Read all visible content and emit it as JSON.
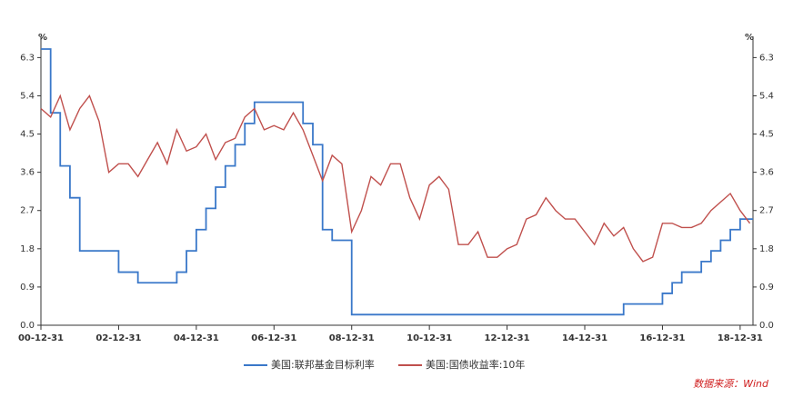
{
  "chart_data": {
    "type": "line",
    "y_unit": "%",
    "y2_unit": "%",
    "x": [
      "00-12-31",
      "01-03-31",
      "01-06-30",
      "01-09-30",
      "01-12-31",
      "02-03-31",
      "02-06-30",
      "02-09-30",
      "02-12-31",
      "03-03-31",
      "03-06-30",
      "03-09-30",
      "03-12-31",
      "04-03-31",
      "04-06-30",
      "04-09-30",
      "04-12-31",
      "05-03-31",
      "05-06-30",
      "05-09-30",
      "05-12-31",
      "06-03-31",
      "06-06-30",
      "06-09-30",
      "06-12-31",
      "07-03-31",
      "07-06-30",
      "07-09-30",
      "07-12-31",
      "08-03-31",
      "08-06-30",
      "08-09-30",
      "08-12-31",
      "09-03-31",
      "09-06-30",
      "09-09-30",
      "09-12-31",
      "10-03-31",
      "10-06-30",
      "10-09-30",
      "10-12-31",
      "11-03-31",
      "11-06-30",
      "11-09-30",
      "11-12-31",
      "12-03-31",
      "12-06-30",
      "12-09-30",
      "12-12-31",
      "13-03-31",
      "13-06-30",
      "13-09-30",
      "13-12-31",
      "14-03-31",
      "14-06-30",
      "14-09-30",
      "14-12-31",
      "15-03-31",
      "15-06-30",
      "15-09-30",
      "15-12-31",
      "16-03-31",
      "16-06-30",
      "16-09-30",
      "16-12-31",
      "17-03-31",
      "17-06-30",
      "17-09-30",
      "17-12-31",
      "18-03-31",
      "18-06-30",
      "18-09-30",
      "18-12-31",
      "19-03-31"
    ],
    "series": [
      {
        "name": "美国:联邦基金目标利率",
        "color": "#3a78c9",
        "step": true,
        "values": [
          6.5,
          5.0,
          3.75,
          3.0,
          1.75,
          1.75,
          1.75,
          1.75,
          1.25,
          1.25,
          1.0,
          1.0,
          1.0,
          1.0,
          1.25,
          1.75,
          2.25,
          2.75,
          3.25,
          3.75,
          4.25,
          4.75,
          5.25,
          5.25,
          5.25,
          5.25,
          5.25,
          4.75,
          4.25,
          2.25,
          2.0,
          2.0,
          0.25,
          0.25,
          0.25,
          0.25,
          0.25,
          0.25,
          0.25,
          0.25,
          0.25,
          0.25,
          0.25,
          0.25,
          0.25,
          0.25,
          0.25,
          0.25,
          0.25,
          0.25,
          0.25,
          0.25,
          0.25,
          0.25,
          0.25,
          0.25,
          0.25,
          0.25,
          0.25,
          0.25,
          0.5,
          0.5,
          0.5,
          0.5,
          0.75,
          1.0,
          1.25,
          1.25,
          1.5,
          1.75,
          2.0,
          2.25,
          2.5,
          2.5
        ]
      },
      {
        "name": "美国:国债收益率:10年",
        "color": "#c0504d",
        "axis": "y2",
        "values": [
          5.1,
          4.9,
          5.4,
          4.6,
          5.1,
          5.4,
          4.8,
          3.6,
          3.8,
          3.8,
          3.5,
          3.9,
          4.3,
          3.8,
          4.6,
          4.1,
          4.2,
          4.5,
          3.9,
          4.3,
          4.4,
          4.9,
          5.1,
          4.6,
          4.7,
          4.6,
          5.0,
          4.6,
          4.0,
          3.4,
          4.0,
          3.8,
          2.2,
          2.7,
          3.5,
          3.3,
          3.8,
          3.8,
          3.0,
          2.5,
          3.3,
          3.5,
          3.2,
          1.9,
          1.9,
          2.2,
          1.6,
          1.6,
          1.8,
          1.9,
          2.5,
          2.6,
          3.0,
          2.7,
          2.5,
          2.5,
          2.2,
          1.9,
          2.4,
          2.1,
          2.3,
          1.8,
          1.5,
          1.6,
          2.4,
          2.4,
          2.3,
          2.3,
          2.4,
          2.7,
          2.9,
          3.1,
          2.7,
          2.4
        ]
      }
    ],
    "xlim": [
      "00-12-31",
      "19-04-30"
    ],
    "xticks": [
      "00-12-31",
      "02-12-31",
      "04-12-31",
      "06-12-31",
      "08-12-31",
      "10-12-31",
      "12-12-31",
      "14-12-31",
      "16-12-31",
      "18-12-31"
    ],
    "ylim": [
      0,
      6.8
    ],
    "yticks": [
      {
        "value": 0,
        "label": "0.0"
      },
      0.9,
      1.8,
      2.7,
      3.6,
      4.5,
      5.4,
      6.3
    ],
    "y2lim": [
      0,
      6.8
    ],
    "y2ticks": [
      {
        "value": 0,
        "label": "0.0"
      },
      0.9,
      1.8,
      2.7,
      3.6,
      4.5,
      5.4,
      6.3
    ],
    "source": "数据来源：Wind"
  }
}
